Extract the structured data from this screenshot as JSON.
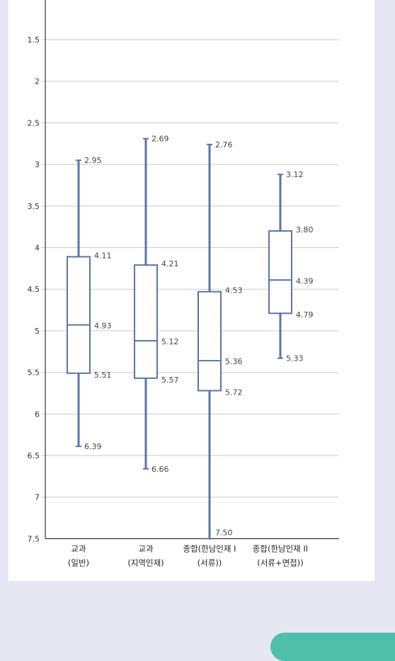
{
  "chart_data": {
    "type": "boxplot",
    "y_reversed": true,
    "ylim": [
      1,
      7.5
    ],
    "y_ticks": [
      "1.5",
      "2",
      "2.5",
      "3",
      "3.5",
      "4",
      "4.5",
      "5",
      "5.5",
      "6",
      "6.5",
      "7",
      "7.5"
    ],
    "y_tick_values": [
      1.5,
      2,
      2.5,
      3,
      3.5,
      4,
      4.5,
      5,
      5.5,
      6,
      6.5,
      7,
      7.5
    ],
    "grid": true,
    "series_color": "#5a76a8",
    "boxes": [
      {
        "category": [
          "교과",
          "(일반)"
        ],
        "min": 2.95,
        "q1": 4.11,
        "median": 4.93,
        "q3": 5.51,
        "max": 6.39,
        "labels": {
          "min": "2.95",
          "q1": "4.11",
          "median": "4.93",
          "q3": "5.51",
          "max": "6.39"
        }
      },
      {
        "category": [
          "교과",
          "(지역인재)"
        ],
        "min": 2.69,
        "q1": 4.21,
        "median": 5.12,
        "q3": 5.57,
        "max": 6.66,
        "labels": {
          "min": "2.69",
          "q1": "4.21",
          "median": "5.12",
          "q3": "5.57",
          "max": "6.66"
        }
      },
      {
        "category": [
          "종합(한남인재 I",
          "(서류))"
        ],
        "min": 2.76,
        "q1": 4.53,
        "median": 5.36,
        "q3": 5.72,
        "max": 7.5,
        "labels": {
          "min": "2.76",
          "q1": "4.53",
          "median": "5.36",
          "q3": "5.72",
          "max": "7.50"
        }
      },
      {
        "category": [
          "종합(한남인재 II",
          "(서류+면접))"
        ],
        "min": 3.12,
        "q1": 3.8,
        "median": 4.39,
        "q3": 4.79,
        "max": 5.33,
        "labels": {
          "min": "3.12",
          "q1": "3.80",
          "median": "4.39",
          "q3": "4.79",
          "max": "5.33"
        }
      }
    ]
  }
}
